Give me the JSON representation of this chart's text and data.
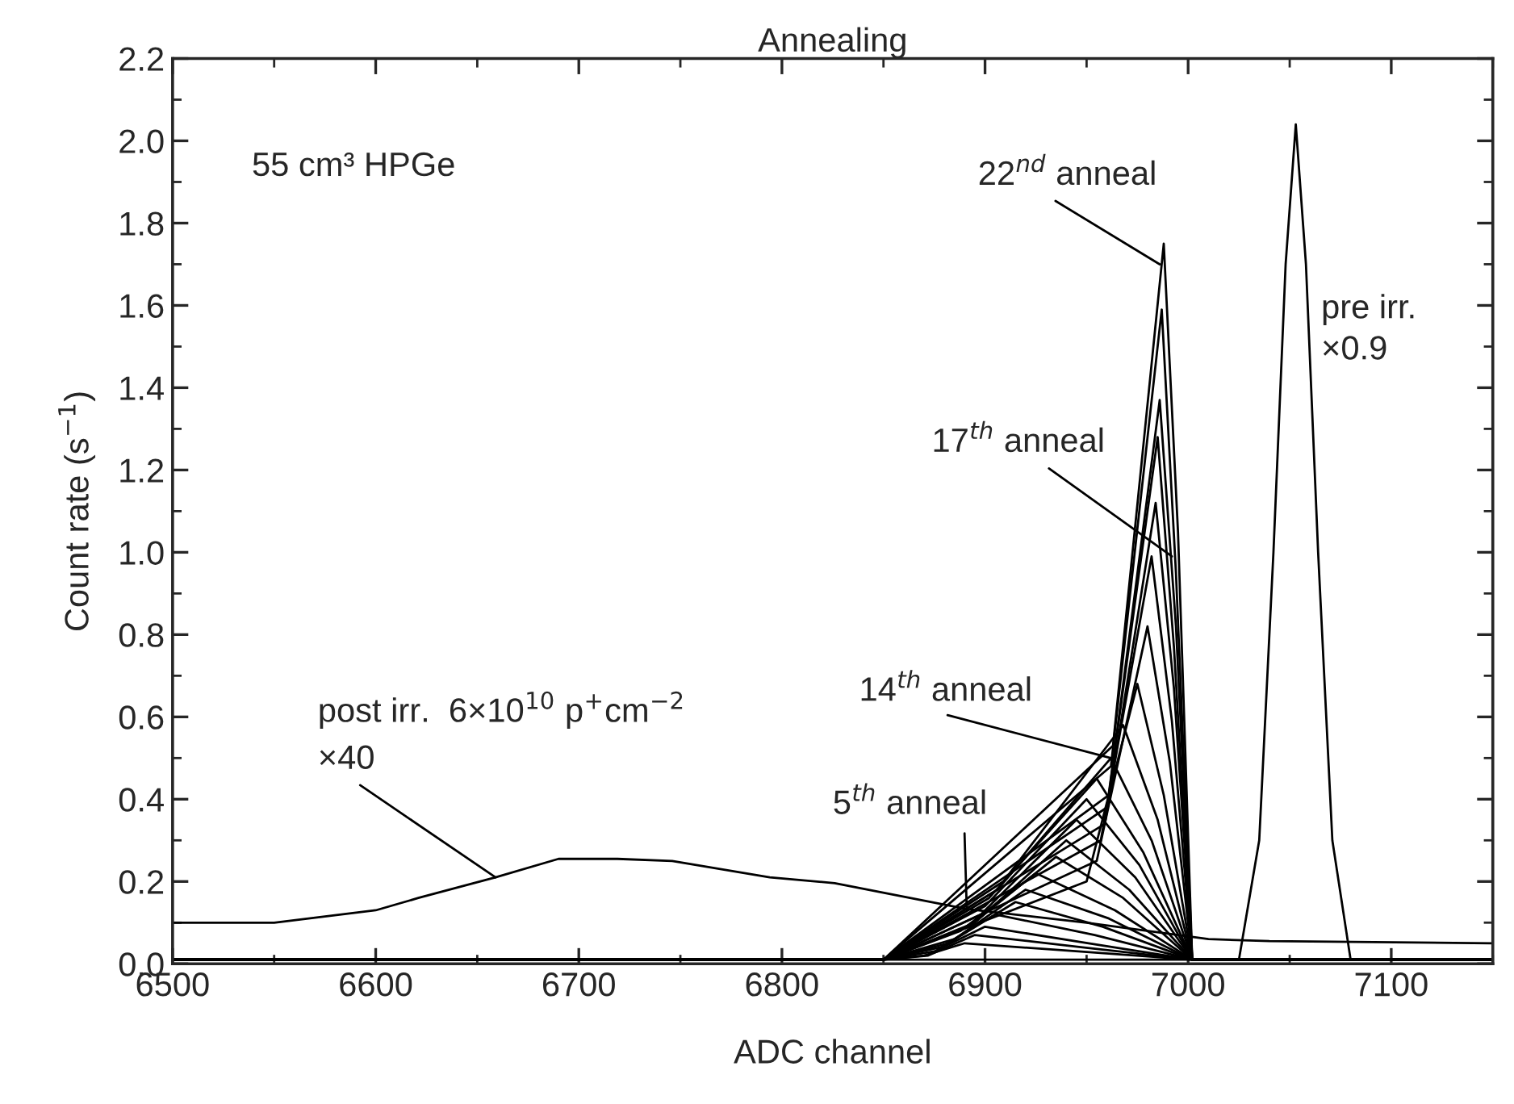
{
  "chart_data": {
    "type": "line",
    "title": "Annealing",
    "xlabel": "ADC channel",
    "ylabel": "Count rate (s$^{−1}$)",
    "xlim": [
      6500,
      7150
    ],
    "xticks": [
      6500,
      6600,
      6700,
      6800,
      6900,
      7000,
      7100
    ],
    "ylim": [
      0.0,
      2.2
    ],
    "yticks": [
      {
        "value": 0,
        "label": "0.0"
      },
      0.2,
      0.4,
      0.6,
      0.8,
      {
        "value": 1,
        "label": "1.0"
      },
      1.2,
      1.4,
      1.6,
      1.8,
      {
        "value": 2,
        "label": "2.0"
      },
      2.2
    ],
    "grid": false,
    "legend": false,
    "line_style": "solid",
    "marker": "none",
    "series": [
      {
        "color": "#000000",
        "x": [
          6500,
          6550,
          6600,
          6621,
          6659,
          6690,
          6719,
          6746,
          6794,
          6826,
          6891,
          6950,
          7010,
          7040,
          7150
        ],
        "values": [
          0.1,
          0.1,
          0.13,
          0.16,
          0.21,
          0.255,
          0.255,
          0.25,
          0.21,
          0.196,
          0.133,
          0.1,
          0.06,
          0.055,
          0.05
        ]
      },
      {
        "color": "#000000",
        "x": [
          6500,
          7025,
          7035,
          7042,
          7048,
          7053,
          7058,
          7064,
          7071,
          7080,
          7150
        ],
        "values": [
          0.01,
          0.01,
          0.3,
          1.0,
          1.7,
          2.04,
          1.7,
          1.0,
          0.3,
          0.01,
          0.01
        ]
      },
      {
        "color": "#000000",
        "x": [
          6500,
          6850,
          6870,
          6890,
          6946,
          7002,
          7150
        ],
        "values": [
          0.01,
          0.01,
          0.02,
          0.05,
          0.03,
          0.01,
          0.01
        ]
      },
      {
        "color": "#000000",
        "x": [
          6500,
          6850,
          6872,
          6895,
          6948,
          7002,
          7150
        ],
        "values": [
          0.01,
          0.01,
          0.02,
          0.07,
          0.04,
          0.01,
          0.01
        ]
      },
      {
        "color": "#000000",
        "x": [
          6500,
          6850,
          6875,
          6900,
          6951,
          7002,
          7150
        ],
        "values": [
          0.01,
          0.01,
          0.03,
          0.09,
          0.05,
          0.01,
          0.01
        ]
      },
      {
        "color": "#000000",
        "x": [
          6500,
          6850,
          6878,
          6905,
          6954,
          7002,
          7150
        ],
        "values": [
          0.01,
          0.01,
          0.04,
          0.12,
          0.07,
          0.01,
          0.01
        ]
      },
      {
        "color": "#000000",
        "x": [
          6500,
          6850,
          6882,
          6915,
          6958,
          7002,
          7150
        ],
        "values": [
          0.01,
          0.01,
          0.05,
          0.15,
          0.09,
          0.01,
          0.01
        ]
      },
      {
        "color": "#000000",
        "x": [
          6500,
          6850,
          6885,
          6920,
          6961,
          7002,
          7150
        ],
        "values": [
          0.01,
          0.01,
          0.06,
          0.18,
          0.11,
          0.01,
          0.01
        ]
      },
      {
        "color": "#000000",
        "x": [
          6500,
          6850,
          6888,
          6925,
          6964,
          7002,
          7150
        ],
        "values": [
          0.01,
          0.01,
          0.08,
          0.22,
          0.13,
          0.01,
          0.01
        ]
      },
      {
        "color": "#000000",
        "x": [
          6500,
          6850,
          6892,
          6935,
          6968,
          7002,
          7150
        ],
        "values": [
          0.01,
          0.01,
          0.09,
          0.26,
          0.16,
          0.01,
          0.01
        ]
      },
      {
        "color": "#000000",
        "x": [
          6500,
          6850,
          6895,
          6940,
          6971,
          7002,
          7150
        ],
        "values": [
          0.01,
          0.01,
          0.1,
          0.3,
          0.18,
          0.01,
          0.01
        ]
      },
      {
        "color": "#000000",
        "x": [
          6500,
          6850,
          6898,
          6945,
          6974,
          7002,
          7150
        ],
        "values": [
          0.01,
          0.01,
          0.12,
          0.35,
          0.21,
          0.01,
          0.01
        ]
      },
      {
        "color": "#000000",
        "x": [
          6500,
          6850,
          6900,
          6950,
          6976,
          7002,
          7150
        ],
        "values": [
          0.01,
          0.01,
          0.14,
          0.4,
          0.24,
          0.01,
          0.01
        ]
      },
      {
        "color": "#000000",
        "x": [
          6500,
          6850,
          6902,
          6955,
          6978,
          7002,
          7150
        ],
        "values": [
          0.01,
          0.01,
          0.16,
          0.45,
          0.27,
          0.01,
          0.01
        ]
      },
      {
        "color": "#000000",
        "x": [
          6500,
          6850,
          6906,
          6962,
          6982,
          7002,
          7150
        ],
        "values": [
          0.01,
          0.01,
          0.18,
          0.5,
          0.3,
          0.01,
          0.01
        ]
      },
      {
        "color": "#000000",
        "x": [
          6500,
          6850,
          6909,
          6968,
          6985,
          7002,
          7150
        ],
        "values": [
          0.01,
          0.01,
          0.2,
          0.58,
          0.35,
          0.01,
          0.01
        ]
      },
      {
        "color": "#000000",
        "x": [
          6500,
          6850,
          6950,
          6975,
          6988,
          7002,
          7150
        ],
        "values": [
          0.01,
          0.01,
          0.2,
          0.68,
          0.41,
          0.01,
          0.01
        ]
      },
      {
        "color": "#000000",
        "x": [
          6500,
          6850,
          6955,
          6980,
          6991,
          7002,
          7150
        ],
        "values": [
          0.01,
          0.01,
          0.25,
          0.82,
          0.49,
          0.01,
          0.01
        ]
      },
      {
        "color": "#000000",
        "x": [
          6500,
          6850,
          6957,
          6982,
          6992,
          7002,
          7150
        ],
        "values": [
          0.01,
          0.01,
          0.3,
          0.99,
          0.59,
          0.01,
          0.01
        ]
      },
      {
        "color": "#000000",
        "x": [
          6500,
          6850,
          6959,
          6984,
          6993,
          7002,
          7150
        ],
        "values": [
          0.01,
          0.01,
          0.34,
          1.12,
          0.67,
          0.01,
          0.01
        ]
      },
      {
        "color": "#000000",
        "x": [
          6500,
          6850,
          6960,
          6985,
          6993,
          7002,
          7150
        ],
        "values": [
          0.01,
          0.01,
          0.38,
          1.28,
          0.77,
          0.01,
          0.01
        ]
      },
      {
        "color": "#000000",
        "x": [
          6500,
          6850,
          6961,
          6986,
          6994,
          7002,
          7150
        ],
        "values": [
          0.01,
          0.01,
          0.41,
          1.37,
          0.82,
          0.01,
          0.01
        ]
      },
      {
        "color": "#000000",
        "x": [
          6500,
          6850,
          6962,
          6987,
          6994,
          7002,
          7150
        ],
        "values": [
          0.01,
          0.01,
          0.48,
          1.59,
          0.95,
          0.01,
          0.01
        ]
      },
      {
        "color": "#000000",
        "x": [
          6500,
          6850,
          6963,
          6988,
          6995,
          7002,
          7150
        ],
        "values": [
          0.01,
          0.01,
          0.53,
          1.75,
          1.05,
          0.01,
          0.01
        ]
      }
    ],
    "annotations": [
      "55 cm³ HPGe",
      {
        "text": "22$^{nd}$ anneal",
        "x": 6986,
        "y": 1.7
      },
      {
        "text": "17$^{th}$ anneal",
        "x": 6992,
        "y": 0.99
      },
      {
        "text": "14$^{th}$ anneal",
        "x": 6962,
        "y": 0.5
      },
      {
        "text": "5$^{th}$ anneal",
        "x": 6891,
        "y": 0.133
      },
      "post irr.  6×10$^{10}$ p$^{+}$cm$^{−2}$",
      {
        "text": "×40",
        "x": 6659,
        "y": 0.21
      },
      "pre irr.\n×0.9"
    ]
  }
}
